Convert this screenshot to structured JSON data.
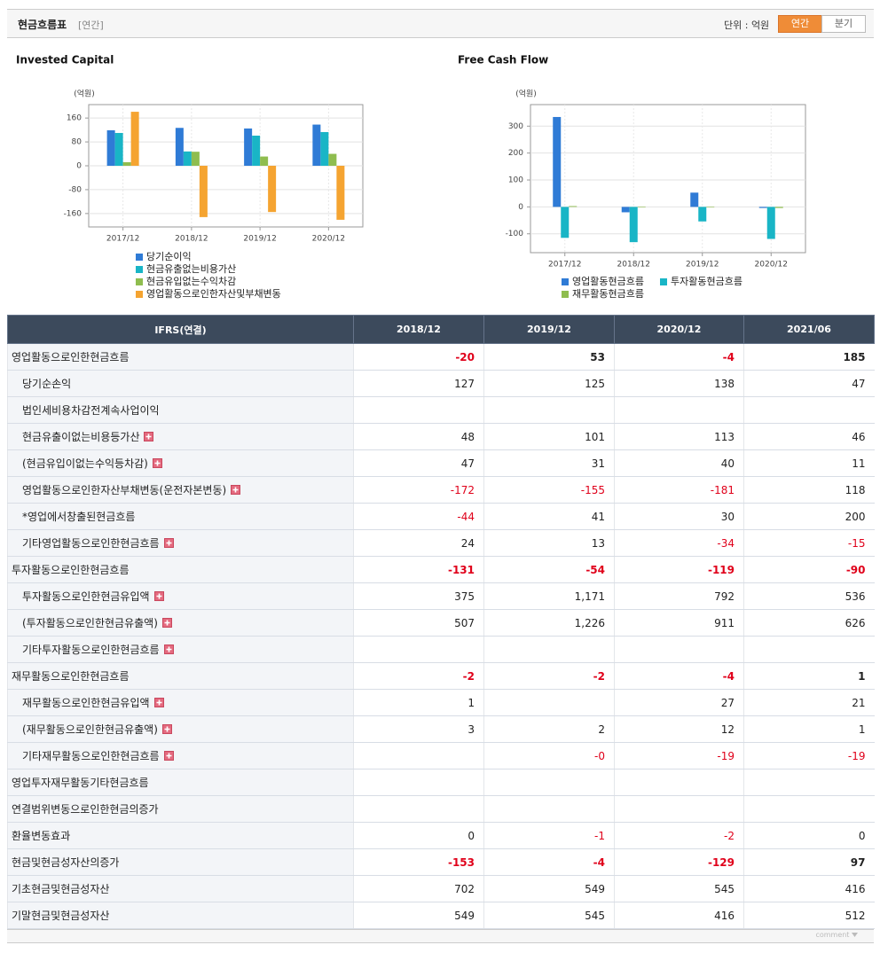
{
  "header": {
    "title": "현금흐름표",
    "subtitle": "[연간]",
    "unit_label": "단위 : 억원",
    "tabs": [
      "연간",
      "분기"
    ],
    "active_tab": 0
  },
  "chart_data": [
    {
      "type": "bar",
      "title": "Invested Capital",
      "y_unit": "(억원)",
      "categories": [
        "2017/12",
        "2018/12",
        "2019/12",
        "2020/12"
      ],
      "series": [
        {
          "name": "당기순이익",
          "color": "#2f7bd6",
          "values": [
            119,
            127,
            125,
            138
          ]
        },
        {
          "name": "현금유출없는비용가산",
          "color": "#19b5c6",
          "values": [
            110,
            48,
            101,
            113
          ]
        },
        {
          "name": "현금유입없는수익차감",
          "color": "#8fbd4f",
          "values": [
            12,
            47,
            31,
            40
          ]
        },
        {
          "name": "영업활동으로인한자산및부채변동",
          "color": "#f5a431",
          "values": [
            181,
            -172,
            -155,
            -181
          ]
        }
      ],
      "ylim": [
        -205,
        205
      ],
      "yticks": [
        160,
        80,
        0,
        -80,
        -160
      ],
      "grid": true,
      "legend": "bottom"
    },
    {
      "type": "bar",
      "title": "Free Cash Flow",
      "y_unit": "(억원)",
      "categories": [
        "2017/12",
        "2018/12",
        "2019/12",
        "2020/12"
      ],
      "series": [
        {
          "name": "영업활동현금흐름",
          "color": "#2f7bd6",
          "values": [
            334,
            -20,
            53,
            -4
          ]
        },
        {
          "name": "투자활동현금흐름",
          "color": "#19b5c6",
          "values": [
            -115,
            -131,
            -54,
            -119
          ]
        },
        {
          "name": "재무활동현금흐름",
          "color": "#8fbd4f",
          "values": [
            3,
            -2,
            -2,
            -4
          ]
        }
      ],
      "ylim": [
        -170,
        380
      ],
      "yticks": [
        300,
        200,
        100,
        0,
        -100
      ],
      "grid": true,
      "legend": "bottom"
    }
  ],
  "table": {
    "columns": [
      "IFRS(연결)",
      "2018/12",
      "2019/12",
      "2020/12",
      "2021/06"
    ],
    "rows": [
      {
        "label": "영업활동으로인한현금흐름",
        "bold": true,
        "values": [
          -20,
          53,
          -4,
          185
        ]
      },
      {
        "label": "당기순손익",
        "indent": true,
        "values": [
          127,
          125,
          138,
          47
        ]
      },
      {
        "label": "법인세비용차감전계속사업이익",
        "indent": true,
        "values": [
          null,
          null,
          null,
          null
        ]
      },
      {
        "label": "현금유출이없는비용등가산",
        "indent": true,
        "expandable": true,
        "values": [
          48,
          101,
          113,
          46
        ]
      },
      {
        "label": "(현금유입이없는수익등차감)",
        "indent": true,
        "expandable": true,
        "values": [
          47,
          31,
          40,
          11
        ]
      },
      {
        "label": "영업활동으로인한자산부채변동(운전자본변동)",
        "indent": true,
        "expandable": true,
        "values": [
          -172,
          -155,
          -181,
          118
        ]
      },
      {
        "label": "*영업에서창출된현금흐름",
        "indent": true,
        "values": [
          -44,
          41,
          30,
          200
        ]
      },
      {
        "label": "기타영업활동으로인한현금흐름",
        "indent": true,
        "expandable": true,
        "values": [
          24,
          13,
          -34,
          -15
        ]
      },
      {
        "label": "투자활동으로인한현금흐름",
        "bold": true,
        "values": [
          -131,
          -54,
          -119,
          -90
        ]
      },
      {
        "label": "투자활동으로인한현금유입액",
        "indent": true,
        "expandable": true,
        "values": [
          375,
          "1,171",
          792,
          536
        ]
      },
      {
        "label": "(투자활동으로인한현금유출액)",
        "indent": true,
        "expandable": true,
        "values": [
          507,
          "1,226",
          911,
          626
        ]
      },
      {
        "label": "기타투자활동으로인한현금흐름",
        "indent": true,
        "expandable": true,
        "values": [
          null,
          null,
          null,
          null
        ]
      },
      {
        "label": "재무활동으로인한현금흐름",
        "bold": true,
        "values": [
          -2,
          -2,
          -4,
          1
        ]
      },
      {
        "label": "재무활동으로인한현금유입액",
        "indent": true,
        "expandable": true,
        "values": [
          1,
          null,
          27,
          21
        ]
      },
      {
        "label": "(재무활동으로인한현금유출액)",
        "indent": true,
        "expandable": true,
        "values": [
          3,
          2,
          12,
          1
        ]
      },
      {
        "label": "기타재무활동으로인한현금흐름",
        "indent": true,
        "expandable": true,
        "values": [
          null,
          "-0",
          -19,
          -19
        ]
      },
      {
        "label": "영업투자재무활동기타현금흐름",
        "values": [
          null,
          null,
          null,
          null
        ]
      },
      {
        "label": "연결범위변동으로인한현금의증가",
        "values": [
          null,
          null,
          null,
          null
        ]
      },
      {
        "label": "환율변동효과",
        "values": [
          0,
          -1,
          -2,
          0
        ]
      },
      {
        "label": "현금및현금성자산의증가",
        "bold": true,
        "values": [
          -153,
          -4,
          -129,
          97
        ]
      },
      {
        "label": "기초현금및현금성자산",
        "values": [
          702,
          549,
          545,
          416
        ]
      },
      {
        "label": "기말현금및현금성자산",
        "values": [
          549,
          545,
          416,
          512
        ]
      }
    ]
  },
  "footer": {
    "comment": "comment"
  }
}
